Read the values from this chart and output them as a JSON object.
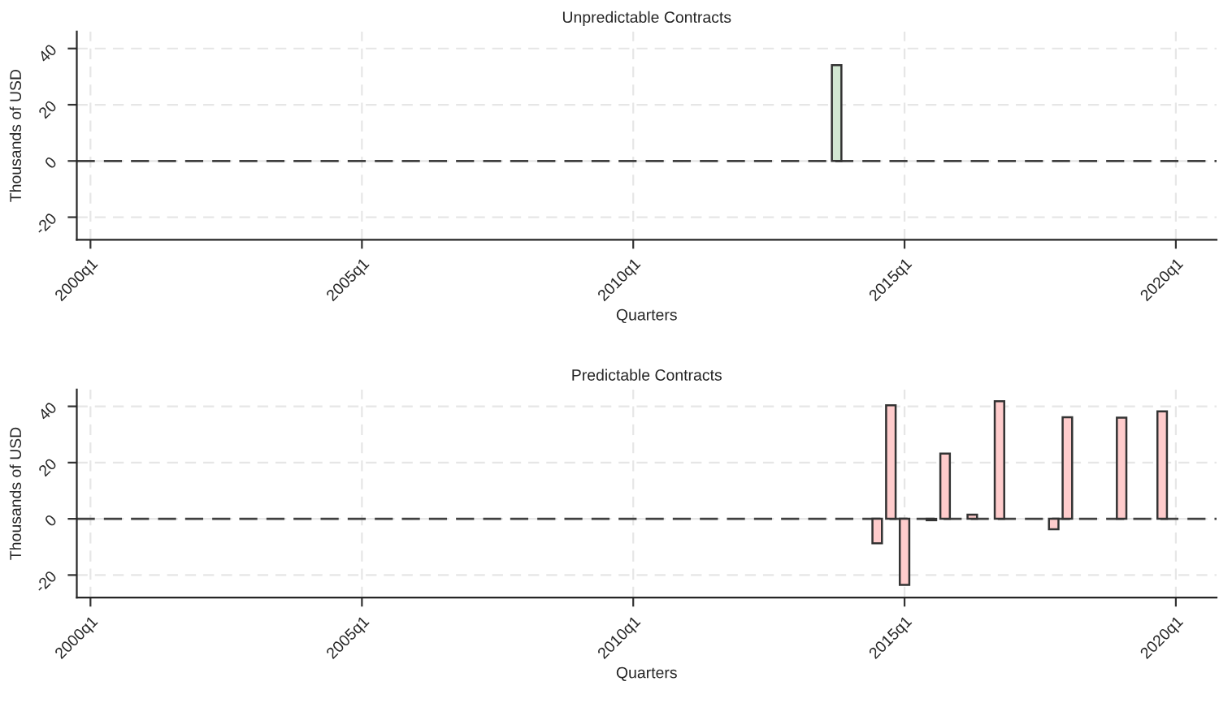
{
  "chart_data": [
    {
      "type": "bar",
      "title": "Unpredictable Contracts",
      "xlabel": "Quarters",
      "ylabel": "Thousands of USD",
      "x": [
        "2013-10"
      ],
      "series": [
        {
          "color": "#d3e8d3",
          "values": [
            34.1
          ]
        }
      ],
      "xlim": [
        "1999-10",
        "2020-10"
      ],
      "xticks": [
        {
          "value": "2000-01",
          "label": "2000q1"
        },
        {
          "value": "2005-01",
          "label": "2005q1"
        },
        {
          "value": "2010-01",
          "label": "2010q1"
        },
        {
          "value": "2015-01",
          "label": "2015q1"
        },
        {
          "value": "2020-01",
          "label": "2020q1"
        }
      ],
      "ylim": [
        -28,
        46
      ],
      "yticks": [
        {
          "value": -20,
          "label": "-20"
        },
        0,
        20,
        40
      ],
      "grid": true,
      "ref_lines": [
        {
          "axis": "y",
          "value": 0,
          "color": "#404040",
          "line_style": "dashed"
        }
      ]
    },
    {
      "type": "bar",
      "title": "Predictable Contracts",
      "xlabel": "Quarters",
      "ylabel": "Thousands of USD",
      "x": [
        "2014-07",
        "2014-10",
        "2015-01",
        "2015-07",
        "2015-10",
        "2016-04",
        "2016-10",
        "2017-10",
        "2018-01",
        "2019-01",
        "2019-10"
      ],
      "series": [
        {
          "color": "#ffcccc",
          "values": [
            -8.7,
            40.4,
            -23.5,
            -0.5,
            23.2,
            1.5,
            41.8,
            -3.7,
            36.1,
            36,
            38.2
          ]
        }
      ],
      "xlim": [
        "1999-10",
        "2020-10"
      ],
      "xticks": [
        {
          "value": "2000-01",
          "label": "2000q1"
        },
        {
          "value": "2005-01",
          "label": "2005q1"
        },
        {
          "value": "2010-01",
          "label": "2010q1"
        },
        {
          "value": "2015-01",
          "label": "2015q1"
        },
        {
          "value": "2020-01",
          "label": "2020q1"
        }
      ],
      "ylim": [
        -28,
        46
      ],
      "yticks": [
        {
          "value": -20,
          "label": "-20"
        },
        0,
        20,
        40
      ],
      "grid": true,
      "ref_lines": [
        {
          "axis": "y",
          "value": 0,
          "color": "#404040",
          "line_style": "dashed"
        }
      ]
    }
  ]
}
